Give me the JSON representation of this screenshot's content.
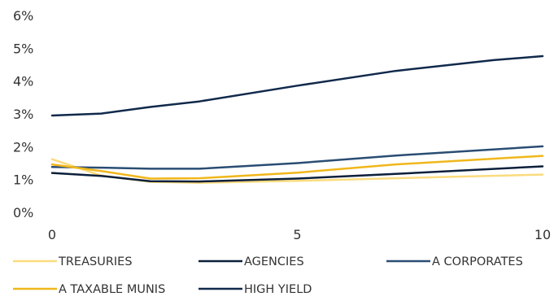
{
  "chart_data": {
    "type": "line",
    "x_ticks": [
      0,
      5,
      10
    ],
    "y_ticks": [
      "0%",
      "1%",
      "2%",
      "3%",
      "4%",
      "5%",
      "6%"
    ],
    "xlim": [
      0,
      10
    ],
    "ylim": [
      0,
      6
    ],
    "grid": false,
    "legend_position": "bottom",
    "series": [
      {
        "name": "TREASURIES",
        "color": "#FADB7E",
        "x": [
          0,
          1,
          2,
          3,
          5,
          7,
          10
        ],
        "y": [
          1.62,
          1.12,
          0.93,
          0.9,
          0.96,
          1.04,
          1.15
        ]
      },
      {
        "name": "AGENCIES",
        "color": "#0B1F3B",
        "x": [
          0,
          1,
          2,
          3,
          5,
          7,
          10
        ],
        "y": [
          1.2,
          1.11,
          0.95,
          0.94,
          1.03,
          1.17,
          1.4
        ]
      },
      {
        "name": "A CORPORATES",
        "color": "#2A4D73",
        "x": [
          0,
          1,
          2,
          3,
          5,
          7,
          10
        ],
        "y": [
          1.38,
          1.36,
          1.33,
          1.33,
          1.5,
          1.73,
          2.01
        ]
      },
      {
        "name": "A TAXABLE MUNIS",
        "color": "#F0B71B",
        "x": [
          0,
          1,
          2,
          3,
          5,
          7,
          10
        ],
        "y": [
          1.46,
          1.26,
          1.03,
          1.04,
          1.21,
          1.46,
          1.72
        ]
      },
      {
        "name": "HIGH YIELD",
        "color": "#10294B",
        "x": [
          0,
          1,
          2,
          3,
          5,
          7,
          9,
          10
        ],
        "y": [
          2.95,
          3.01,
          3.21,
          3.38,
          3.86,
          4.31,
          4.64,
          4.76
        ]
      }
    ]
  }
}
